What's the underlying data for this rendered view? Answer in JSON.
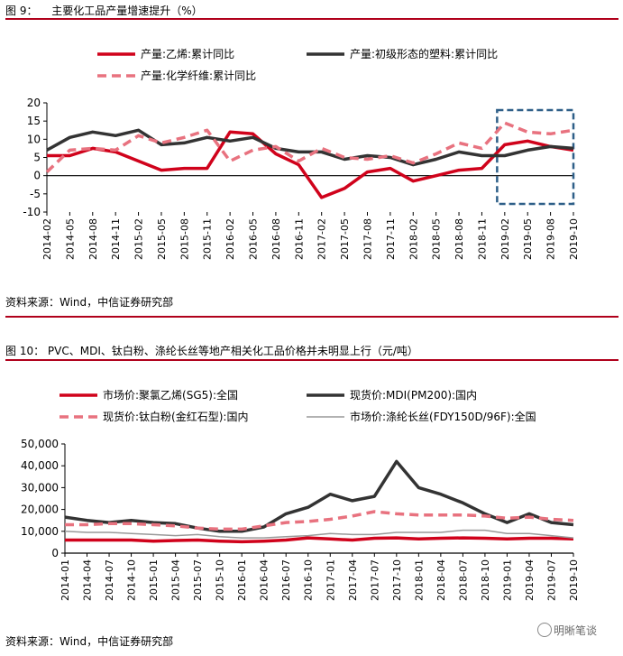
{
  "fig9": {
    "label": "图 9：",
    "title": "主要化工品产量增速提升（%）",
    "source": "资料来源：Wind，中信证券研究部"
  },
  "fig10": {
    "label": "图 10：",
    "title": "PVC、MDI、钛白粉、涤纶长丝等地产相关化工品价格并未明显上行（元/吨）",
    "source": "资料来源：Wind，中信证券研究部"
  },
  "watermark": "明晰笔谈",
  "chart_data": [
    {
      "type": "line",
      "title": "",
      "x": [
        "2014-02",
        "2014-05",
        "2014-08",
        "2014-11",
        "2015-02",
        "2015-05",
        "2015-08",
        "2015-11",
        "2016-02",
        "2016-05",
        "2016-08",
        "2016-11",
        "2017-02",
        "2017-05",
        "2017-08",
        "2017-11",
        "2018-02",
        "2018-05",
        "2018-08",
        "2018-11",
        "2019-02",
        "2019-05",
        "2019-08",
        "2019-10"
      ],
      "ylim": [
        -10,
        20
      ],
      "yticks": [
        -10,
        -5,
        0,
        5,
        10,
        15,
        20
      ],
      "highlight_box": [
        "2019-01",
        "2019-11"
      ],
      "series": [
        {
          "name": "产量:乙烯:累计同比",
          "color": "#d0021b",
          "style": "solid",
          "values": [
            5.5,
            5.5,
            7.5,
            6.5,
            4.0,
            1.5,
            2.0,
            2.0,
            12.0,
            11.5,
            6.0,
            3.0,
            -6.0,
            -3.5,
            1.0,
            2.0,
            -1.5,
            0.0,
            1.5,
            2.0,
            8.5,
            9.5,
            8.0,
            7.0
          ]
        },
        {
          "name": "产量:初级形态的塑料:累计同比",
          "color": "#333333",
          "style": "solid",
          "values": [
            7.0,
            10.5,
            12.0,
            11.0,
            12.5,
            8.5,
            9.0,
            10.5,
            9.5,
            10.5,
            7.5,
            6.5,
            6.5,
            4.5,
            5.5,
            5.0,
            3.0,
            4.5,
            6.5,
            5.5,
            5.5,
            7.0,
            8.0,
            7.5
          ]
        },
        {
          "name": "产量:化学纤维:累计同比",
          "color": "#e8727f",
          "style": "dashed",
          "values": [
            1.0,
            7.0,
            7.5,
            7.0,
            11.0,
            9.0,
            10.5,
            12.5,
            4.0,
            7.0,
            8.0,
            4.0,
            7.5,
            5.0,
            4.5,
            5.5,
            3.5,
            6.0,
            9.0,
            7.5,
            14.5,
            12.0,
            11.5,
            12.5
          ]
        }
      ]
    },
    {
      "type": "line",
      "title": "",
      "x": [
        "2014-01",
        "2014-04",
        "2014-07",
        "2014-10",
        "2015-01",
        "2015-04",
        "2015-07",
        "2015-10",
        "2016-01",
        "2016-04",
        "2016-07",
        "2016-10",
        "2017-01",
        "2017-04",
        "2017-07",
        "2017-10",
        "2018-01",
        "2018-04",
        "2018-07",
        "2018-10",
        "2019-01",
        "2019-04",
        "2019-07",
        "2019-10"
      ],
      "ylim": [
        0,
        50000
      ],
      "yticks": [
        0,
        10000,
        20000,
        30000,
        40000,
        50000
      ],
      "ytick_labels": [
        "0",
        "10,000",
        "20,000",
        "30,000",
        "40,000",
        "50,000"
      ],
      "series": [
        {
          "name": "市场价:聚氯乙烯(SG5):全国",
          "color": "#d0021b",
          "style": "solid",
          "values": [
            6000,
            6000,
            6000,
            6000,
            5500,
            5800,
            6000,
            5500,
            5200,
            5500,
            6000,
            7000,
            6500,
            6000,
            6800,
            7000,
            6500,
            6800,
            7000,
            6800,
            6500,
            6800,
            6800,
            6500
          ]
        },
        {
          "name": "现货价:MDI(PM200):国内",
          "color": "#333333",
          "style": "solid",
          "values": [
            16500,
            15000,
            14000,
            15000,
            14000,
            13500,
            11500,
            10000,
            10000,
            12000,
            18000,
            21000,
            27000,
            24000,
            26000,
            42000,
            30000,
            27000,
            23000,
            18000,
            14000,
            18000,
            14000,
            13000
          ]
        },
        {
          "name": "现货价:钛白粉(金红石型):国内",
          "color": "#e8727f",
          "style": "dashed",
          "values": [
            13000,
            13000,
            13500,
            13500,
            13000,
            12500,
            11500,
            11000,
            11000,
            12500,
            14000,
            14500,
            15500,
            17000,
            19000,
            18000,
            17500,
            17500,
            17500,
            17000,
            16000,
            16500,
            15500,
            15000
          ]
        },
        {
          "name": "市场价:涤纶长丝(FDY150D/96F):全国",
          "color": "#999999",
          "style": "thin",
          "values": [
            10000,
            9500,
            9500,
            9000,
            8500,
            8000,
            8500,
            7500,
            7000,
            7000,
            7500,
            8000,
            9000,
            8500,
            8500,
            9500,
            9500,
            9500,
            10500,
            10500,
            9000,
            9000,
            8000,
            7000
          ]
        }
      ]
    }
  ]
}
